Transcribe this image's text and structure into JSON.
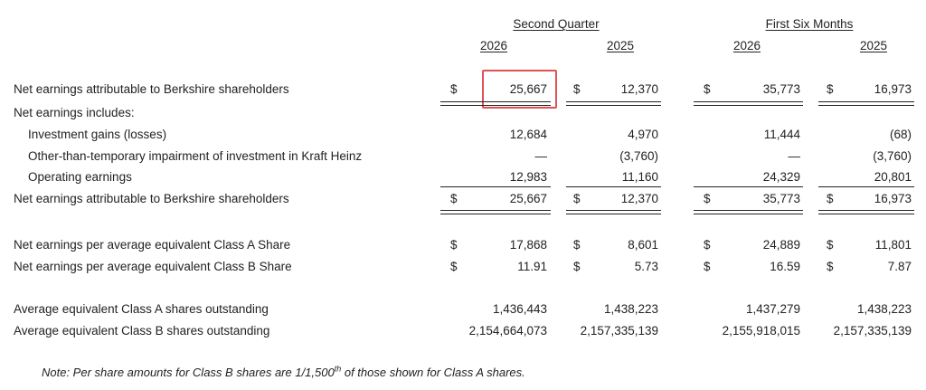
{
  "headers": {
    "group1": "Second Quarter",
    "group2": "First Six Months",
    "years": [
      "2026",
      "2025",
      "2026",
      "2025"
    ]
  },
  "rows": [
    {
      "label": "Net earnings attributable to Berkshire shareholders",
      "dollar": true,
      "values": [
        "25,667",
        "12,370",
        "35,773",
        "16,973"
      ]
    },
    {
      "label": "Net earnings includes:",
      "dollar": false,
      "values": [
        "",
        "",
        "",
        ""
      ]
    },
    {
      "label": "Investment gains (losses)",
      "dollar": false,
      "values": [
        "12,684",
        "4,970",
        "11,444",
        "(68)"
      ]
    },
    {
      "label": "Other-than-temporary impairment of investment in Kraft Heinz",
      "dollar": false,
      "values": [
        "—",
        "(3,760)",
        "—",
        "(3,760)"
      ]
    },
    {
      "label": "Operating earnings",
      "dollar": false,
      "values": [
        "12,983",
        "11,160",
        "24,329",
        "20,801"
      ]
    },
    {
      "label": "Net earnings attributable to Berkshire shareholders",
      "dollar": true,
      "values": [
        "25,667",
        "12,370",
        "35,773",
        "16,973"
      ]
    },
    {
      "label": "Net earnings per average equivalent Class A Share",
      "dollar": true,
      "values": [
        "17,868",
        "8,601",
        "24,889",
        "11,801"
      ]
    },
    {
      "label": "Net earnings per average equivalent Class B Share",
      "dollar": true,
      "values": [
        "11.91",
        "5.73",
        "16.59",
        "7.87"
      ]
    },
    {
      "label": "Average equivalent Class A shares outstanding",
      "dollar": false,
      "values": [
        "1,436,443",
        "1,438,223",
        "1,437,279",
        "1,438,223"
      ]
    },
    {
      "label": "Average equivalent Class B shares outstanding",
      "dollar": false,
      "values": [
        "2,154,664,073",
        "2,157,335,139",
        "2,155,918,015",
        "2,157,335,139"
      ]
    }
  ],
  "currency_symbol": "$",
  "note": {
    "prefix": "Note: Per share amounts for Class B shares are 1/1,500",
    "superscript": "th",
    "suffix": " of those shown for Class A shares."
  },
  "highlight_color": "#e05252"
}
